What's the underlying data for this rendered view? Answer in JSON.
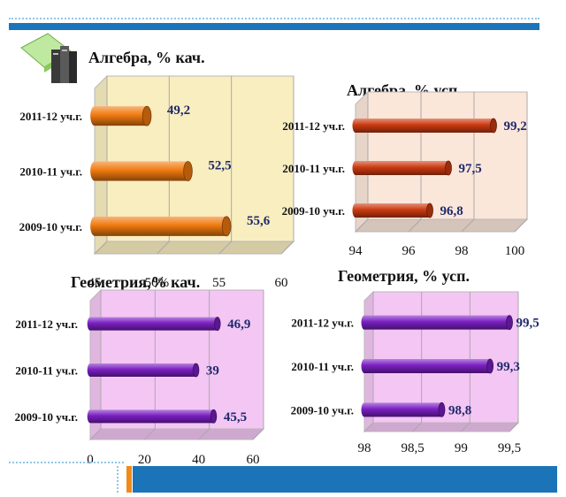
{
  "page": {
    "colors": {
      "brand_bar": "#1b74b8",
      "accent": "#f28a1a"
    },
    "icon": "books-icon"
  },
  "chart_data": [
    {
      "id": "alg-kach",
      "type": "bar",
      "orientation": "horizontal",
      "title": "Алгебра, % кач.",
      "categories": [
        "2011-12 уч.г.",
        "2010-11 уч.г.",
        "2009-10 уч.г."
      ],
      "values": [
        49.2,
        52.5,
        55.6
      ],
      "value_labels": [
        "49,2",
        "52,5",
        "55,6"
      ],
      "xlim": [
        45,
        60
      ],
      "ticks": [
        "45",
        "50%",
        "55",
        "60"
      ],
      "grid": true,
      "colors": {
        "bar": "#f07a10",
        "bg": "#f9eec0"
      }
    },
    {
      "id": "alg-usp",
      "type": "bar",
      "orientation": "horizontal",
      "title": "Алгебра, % усп.",
      "categories": [
        "2011-12 уч.г.",
        "2010-11 уч.г.",
        "2009-10 уч.г."
      ],
      "values": [
        99.2,
        97.5,
        96.8
      ],
      "value_labels": [
        "99,2",
        "97,5",
        "96,8"
      ],
      "xlim": [
        94,
        100
      ],
      "ticks": [
        "94",
        "96",
        "98",
        "100"
      ],
      "grid": true,
      "colors": {
        "bar": "#cc3a10",
        "bg": "#fbe6da"
      }
    },
    {
      "id": "geo-kach",
      "type": "bar",
      "orientation": "horizontal",
      "title": "Геометрия,% кач.",
      "categories": [
        "2011-12 уч.г.",
        "2010-11 уч.г.",
        "2009-10 уч.г."
      ],
      "values": [
        46.9,
        39,
        45.5
      ],
      "value_labels": [
        "46,9",
        "39",
        "45,5"
      ],
      "xlim": [
        0,
        60
      ],
      "ticks": [
        "0",
        "20",
        "40",
        "60"
      ],
      "grid": true,
      "colors": {
        "bar": "#7a1fc2",
        "bg": "#f4c6f4"
      }
    },
    {
      "id": "geo-usp",
      "type": "bar",
      "orientation": "horizontal",
      "title": "Геометрия, % усп.",
      "categories": [
        "2011-12 уч.г.",
        "2010-11 уч.г.",
        "2009-10 уч.г."
      ],
      "values": [
        99.5,
        99.3,
        98.8
      ],
      "value_labels": [
        "99,5",
        "99,3",
        "98,8"
      ],
      "xlim": [
        98,
        99.5
      ],
      "ticks": [
        "98",
        "98,5",
        "99",
        "99,5"
      ],
      "grid": true,
      "colors": {
        "bar": "#7a1fc2",
        "bg": "#f4c6f4"
      }
    }
  ]
}
